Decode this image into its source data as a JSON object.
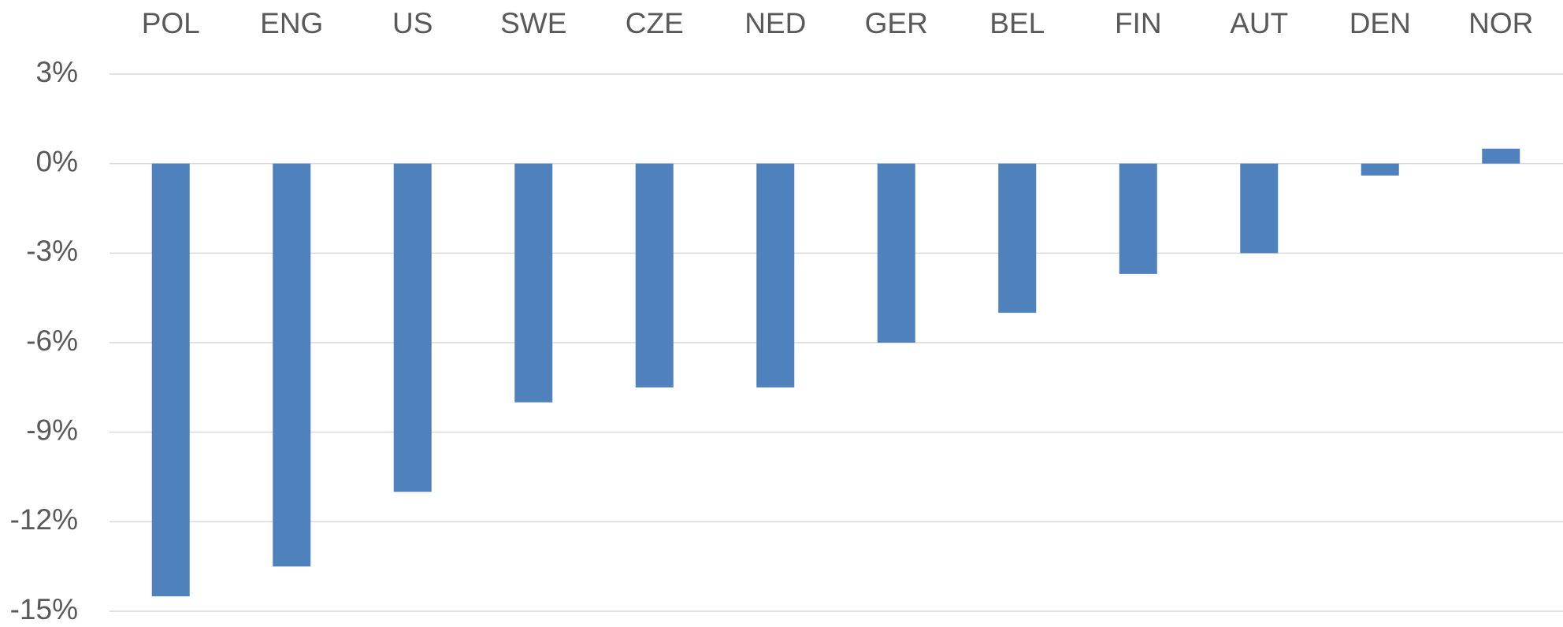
{
  "chart_data": {
    "type": "bar",
    "categories": [
      "POL",
      "ENG",
      "US",
      "SWE",
      "CZE",
      "NED",
      "GER",
      "BEL",
      "FIN",
      "AUT",
      "DEN",
      "NOR"
    ],
    "values": [
      -14.5,
      -13.5,
      -11,
      -8,
      -7.5,
      -7.5,
      -6,
      -5,
      -3.7,
      -3,
      -0.4,
      0.5
    ],
    "color": "#4f81bd",
    "ylim": [
      -15,
      3
    ],
    "yticks": [
      {
        "value": 3,
        "label": "3%"
      },
      {
        "value": 0,
        "label": "0%"
      },
      {
        "value": -3,
        "label": "-3%"
      },
      {
        "value": -6,
        "label": "-6%"
      },
      {
        "value": -9,
        "label": "-9%"
      },
      {
        "value": -12,
        "label": "-12%"
      },
      {
        "value": -15,
        "label": "-15%"
      }
    ],
    "grid": true
  }
}
